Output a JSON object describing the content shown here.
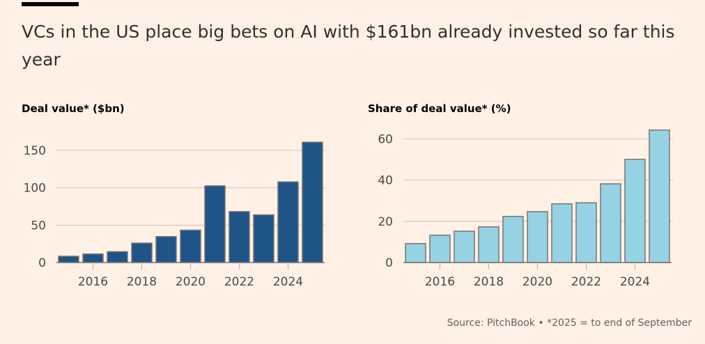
{
  "title": "VCs in the US place big bets on AI with $161bn already invested so far this year",
  "source": "Source: PitchBook • *2025 = to end of September",
  "chart_data": [
    {
      "type": "bar",
      "title": "Deal value* ($bn)",
      "categories": [
        2015,
        2016,
        2017,
        2018,
        2019,
        2020,
        2021,
        2022,
        2023,
        2024,
        2025
      ],
      "values": [
        8.4,
        11.4,
        14.5,
        26,
        34.7,
        43.3,
        102.6,
        68.2,
        63.8,
        107.9,
        161
      ],
      "ylim": [
        0,
        161
      ],
      "yticks": [
        0,
        50,
        100,
        150
      ],
      "xticks": [
        2016,
        2018,
        2020,
        2022,
        2024
      ],
      "color": "#1f5489",
      "grid": true
    },
    {
      "type": "bar",
      "title": "Share of deal value* (%)",
      "categories": [
        2015,
        2016,
        2017,
        2018,
        2019,
        2020,
        2021,
        2022,
        2023,
        2024,
        2025
      ],
      "values": [
        9.2,
        13.3,
        15.2,
        17.3,
        22.4,
        24.7,
        28.5,
        29,
        38.2,
        50.1,
        64.3
      ],
      "ylim": [
        0,
        64.3
      ],
      "yticks": [
        0,
        20,
        40,
        60
      ],
      "xticks": [
        2016,
        2018,
        2020,
        2022,
        2024
      ],
      "color": "#95d2e4",
      "grid": true
    }
  ]
}
